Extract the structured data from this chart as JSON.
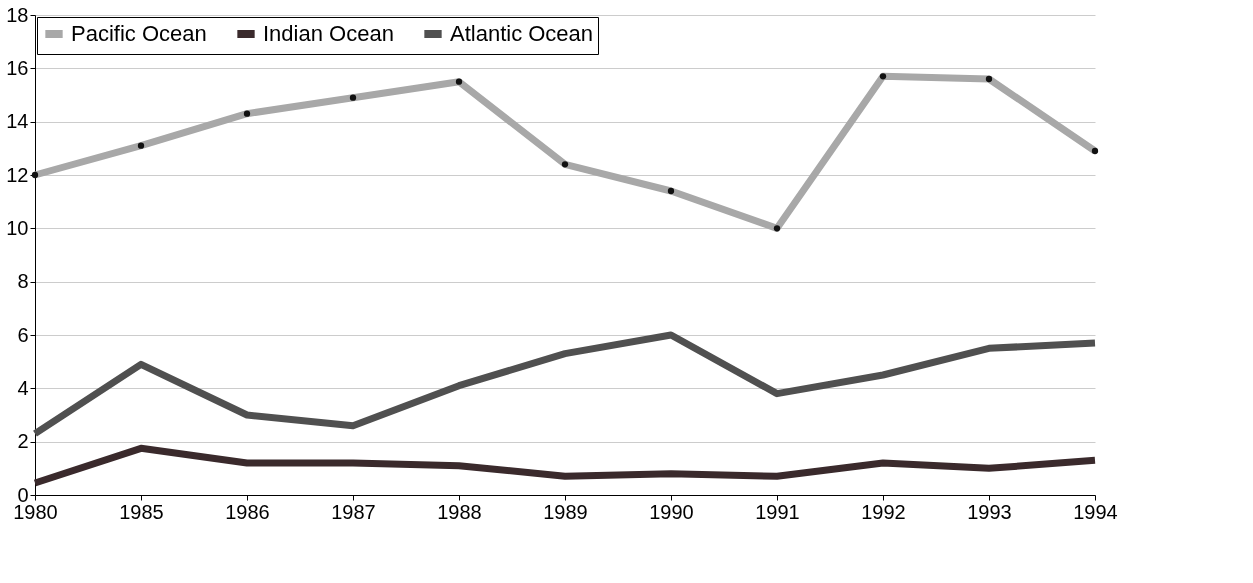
{
  "chart_data": {
    "type": "line",
    "categories": [
      "1980",
      "1985",
      "1986",
      "1987",
      "1988",
      "1989",
      "1990",
      "1991",
      "1992",
      "1993",
      "1994"
    ],
    "series": [
      {
        "name": "Pacific Ocean",
        "color": "#a8a8a8",
        "marker": "circle",
        "values": [
          12.0,
          13.1,
          14.3,
          14.9,
          15.5,
          12.4,
          11.4,
          10.0,
          15.7,
          15.6,
          12.9
        ]
      },
      {
        "name": "Indian Ocean",
        "color": "#3a2a2c",
        "marker": "none",
        "values": [
          0.45,
          1.75,
          1.2,
          1.2,
          1.1,
          0.7,
          0.8,
          0.7,
          1.2,
          1.0,
          1.3
        ]
      },
      {
        "name": "Atlantic Ocean",
        "color": "#505050",
        "marker": "none",
        "values": [
          2.3,
          4.9,
          3.0,
          2.6,
          4.1,
          5.3,
          6.0,
          3.8,
          4.5,
          5.5,
          5.7
        ]
      }
    ],
    "ylim": [
      0,
      18
    ],
    "yticks": [
      0,
      2,
      4,
      6,
      8,
      10,
      12,
      14,
      16,
      18
    ],
    "grid": "y",
    "legend": "top left",
    "line_style": "solid"
  }
}
